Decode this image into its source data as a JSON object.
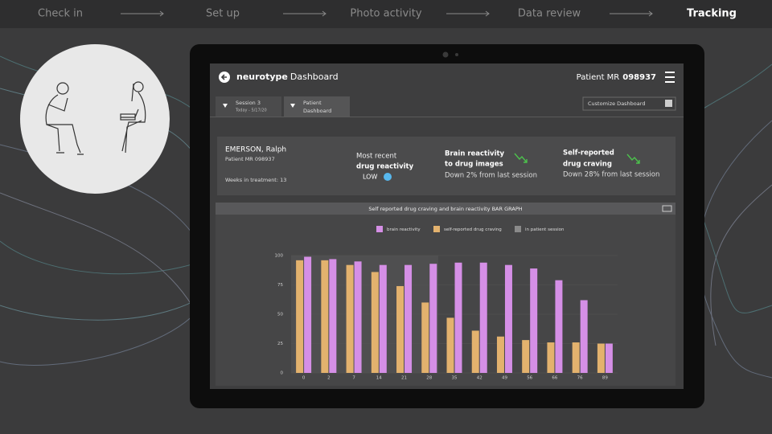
{
  "nav": {
    "steps": [
      "Check in",
      "Set up",
      "Photo activity",
      "Data review",
      "Tracking"
    ]
  },
  "dashboard": {
    "brand": "neurotype",
    "title": "Dashboard",
    "patient_label": "Patient MR",
    "patient_id": "098937",
    "tabs": [
      {
        "title": "Session 3",
        "subtitle": "Today - 5/17/20"
      },
      {
        "title": [
          "Patient",
          "Dashboard"
        ]
      }
    ],
    "customize": "Customize Dashboard",
    "patient": {
      "name": "EMERSON, Ralph",
      "mr": "Patient MR 098937",
      "weeks": "Weeks in treatment: 13"
    },
    "reactivity": {
      "lines": [
        "Most recent",
        "drug reactivity"
      ],
      "level": "LOW"
    },
    "brain": {
      "title": [
        "Brain reactivity",
        "to drug images"
      ],
      "change": "Down 2% from last session"
    },
    "craving": {
      "title": [
        "Self-reported",
        "drug craving"
      ],
      "change": "Down 28% from last session"
    },
    "chart": {
      "type": "bar",
      "title": "Self reported drug craving and brain reactivity BAR GRAPH",
      "categories": [
        "0",
        "2",
        "7",
        "14",
        "21",
        "28",
        "35",
        "42",
        "49",
        "56",
        "66",
        "76",
        "89"
      ],
      "series": [
        {
          "name": "brain reactivity",
          "color": "#d58fe6",
          "values": [
            99,
            97,
            95,
            92,
            92,
            93,
            94,
            94,
            92,
            89,
            79,
            62,
            25
          ]
        },
        {
          "name": "self-reported drug craving",
          "color": "#e3b26e",
          "values": [
            96,
            96,
            92,
            86,
            74,
            60,
            47,
            36,
            31,
            28,
            26,
            26,
            25
          ]
        }
      ],
      "session_legend": "in patient session",
      "ylim": [
        0,
        100
      ],
      "yticks": [
        0,
        25,
        50,
        75,
        100
      ],
      "grid": true
    }
  }
}
